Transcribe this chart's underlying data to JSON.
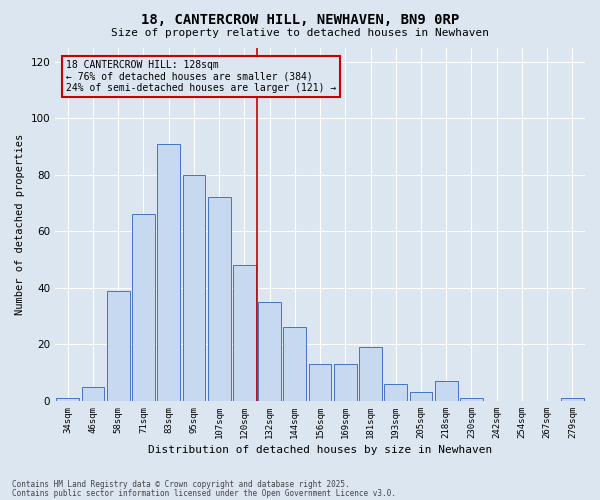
{
  "title": "18, CANTERCROW HILL, NEWHAVEN, BN9 0RP",
  "subtitle": "Size of property relative to detached houses in Newhaven",
  "xlabel": "Distribution of detached houses by size in Newhaven",
  "ylabel": "Number of detached properties",
  "categories": [
    "34sqm",
    "46sqm",
    "58sqm",
    "71sqm",
    "83sqm",
    "95sqm",
    "107sqm",
    "120sqm",
    "132sqm",
    "144sqm",
    "156sqm",
    "169sqm",
    "181sqm",
    "193sqm",
    "205sqm",
    "218sqm",
    "230sqm",
    "242sqm",
    "254sqm",
    "267sqm",
    "279sqm"
  ],
  "bar_heights": [
    1,
    5,
    39,
    66,
    91,
    80,
    72,
    48,
    35,
    26,
    13,
    13,
    19,
    6,
    3,
    7,
    1,
    0,
    0,
    0,
    1
  ],
  "bar_color": "#c6d9f0",
  "bar_edge_color": "#4472c4",
  "background_color": "#dce6f1",
  "grid_color": "#ffffff",
  "vline_color": "#cc0000",
  "annotation_title": "18 CANTERCROW HILL: 128sqm",
  "annotation_line1": "← 76% of detached houses are smaller (384)",
  "annotation_line2": "24% of semi-detached houses are larger (121) →",
  "annotation_box_color": "#cc0000",
  "ylim": [
    0,
    125
  ],
  "yticks": [
    0,
    20,
    40,
    60,
    80,
    100,
    120
  ],
  "footnote1": "Contains HM Land Registry data © Crown copyright and database right 2025.",
  "footnote2": "Contains public sector information licensed under the Open Government Licence v3.0."
}
